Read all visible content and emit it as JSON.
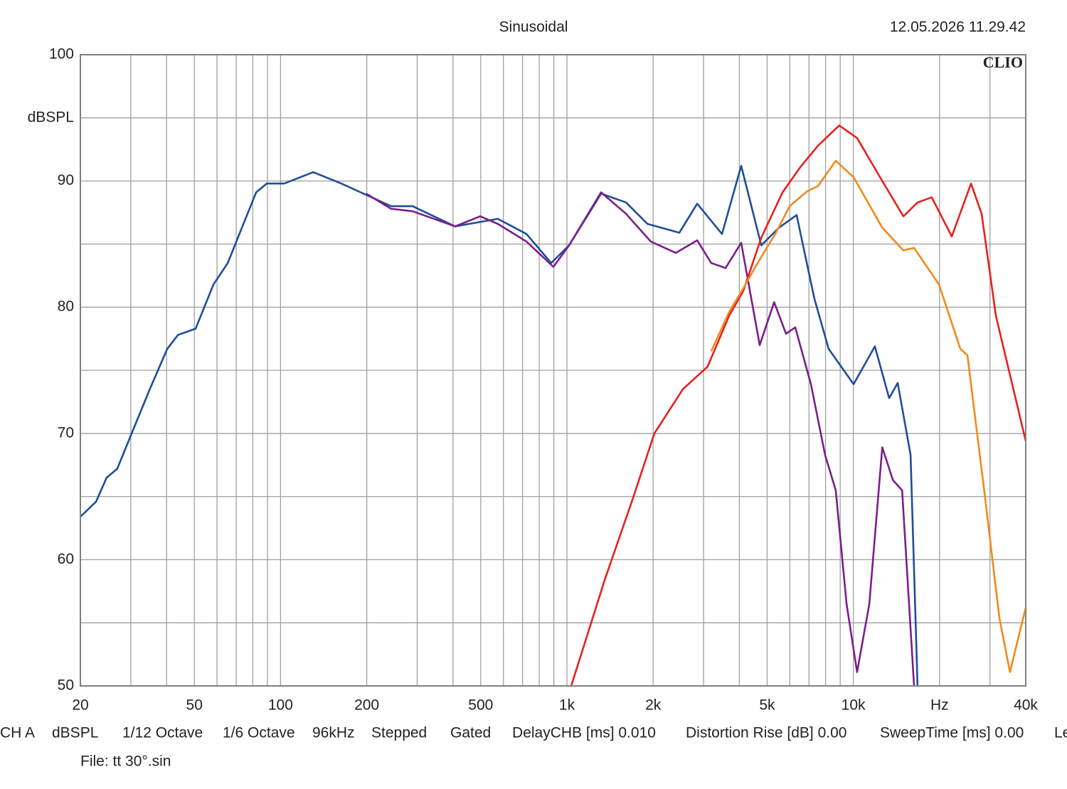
{
  "chart_data": {
    "type": "line",
    "title": "Sinusoidal",
    "timestamp": "12.05.2026 11.29.42",
    "brand": "CLIO",
    "ylabel": "dBSPL",
    "xscale": "log",
    "grid": true,
    "xlim": [
      20,
      40000
    ],
    "ylim": [
      50,
      100
    ],
    "xticks": [
      20,
      50,
      100,
      200,
      500,
      {
        "value": 1000,
        "label": "1k"
      },
      {
        "value": 2000,
        "label": "2k"
      },
      {
        "value": 5000,
        "label": "5k"
      },
      {
        "value": 10000,
        "label": "10k"
      },
      {
        "value": 20000,
        "label": "Hz"
      },
      {
        "value": 40000,
        "label": "40k"
      }
    ],
    "x_minor_ticks": [
      30,
      40,
      60,
      70,
      80,
      90,
      300,
      400,
      600,
      700,
      800,
      900,
      3000,
      4000,
      6000,
      7000,
      8000,
      9000,
      30000
    ],
    "yticks": [
      50,
      60,
      70,
      80,
      90,
      100
    ],
    "y_minor_ticks": [
      55,
      65,
      75,
      85,
      95
    ],
    "series": [
      {
        "color": "#1f4e9a",
        "x": [
          20,
          22.7,
          24.7,
          26.9,
          30.2,
          34.8,
          40.2,
          43.8,
          50.5,
          58.3,
          65.4,
          73.3,
          82.2,
          89.5,
          103,
          130,
          163,
          199,
          243,
          289,
          343,
          407,
          574,
          722,
          881,
          1017,
          1316,
          1608,
          1910,
          2469,
          2850,
          3480,
          4060,
          4770,
          5500,
          6340,
          7310,
          8200,
          10020,
          11890,
          13340,
          14290,
          15850,
          16760
        ],
        "values": [
          63.4,
          64.6,
          66.5,
          67.2,
          70,
          73.4,
          76.7,
          77.8,
          78.3,
          81.8,
          83.5,
          86.3,
          89.1,
          89.8,
          89.8,
          90.7,
          89.8,
          88.9,
          88.0,
          88.0,
          87.2,
          86.4,
          87.0,
          85.8,
          83.5,
          84.9,
          89.0,
          88.3,
          86.6,
          85.9,
          88.2,
          85.8,
          91.2,
          84.9,
          86.3,
          87.3,
          80.7,
          76.7,
          73.9,
          76.9,
          72.8,
          74,
          68.3,
          50
        ]
      },
      {
        "color": "#7a1f8a",
        "x": [
          199,
          243,
          289,
          407,
          498,
          574,
          722,
          897,
          1017,
          1316,
          1608,
          1963,
          2400,
          2850,
          3190,
          3580,
          4060,
          4710,
          5290,
          5820,
          6270,
          7110,
          7970,
          8680,
          9470,
          10310,
          11370,
          12620,
          13750,
          14800,
          16300
        ],
        "values": [
          89.0,
          87.8,
          87.6,
          86.4,
          87.2,
          86.6,
          85.2,
          83.2,
          84.9,
          89.1,
          87.4,
          85.2,
          84.3,
          85.3,
          83.5,
          83.1,
          85.1,
          77.0,
          80.4,
          77.9,
          78.4,
          73.9,
          68.3,
          65.5,
          56.5,
          51.1,
          56.5,
          68.9,
          66.3,
          65.5,
          50
        ]
      },
      {
        "color": "#e8201c",
        "x": [
          1035,
          1355,
          1702,
          2020,
          2540,
          3100,
          3680,
          4130,
          4770,
          5660,
          6530,
          7530,
          8930,
          10310,
          12620,
          14960,
          16760,
          18790,
          22070,
          25770,
          28060,
          31480,
          40000
        ],
        "values": [
          50,
          58.4,
          64.9,
          70,
          73.5,
          75.3,
          79.3,
          81.3,
          85.5,
          89.1,
          91.1,
          92.8,
          94.4,
          93.4,
          90.0,
          87.2,
          88.3,
          88.7,
          85.6,
          89.8,
          87.4,
          79.3,
          69.4
        ]
      },
      {
        "color": "#f08a1c",
        "x": [
          3190,
          3680,
          4130,
          4630,
          5340,
          5990,
          6920,
          7530,
          8680,
          10020,
          12620,
          14960,
          16300,
          19910,
          23650,
          25020,
          28860,
          32350,
          35240,
          40000
        ],
        "values": [
          76.5,
          79.6,
          81.5,
          83.5,
          85.8,
          88.0,
          89.2,
          89.6,
          91.6,
          90.3,
          86.3,
          84.5,
          84.7,
          81.8,
          76.7,
          76.2,
          64.9,
          55.4,
          51.1,
          56.2
        ]
      }
    ],
    "footer": [
      "CH A",
      "dBSPL",
      "1/12 Octave",
      "1/6 Octave",
      "96kHz",
      "Stepped",
      "Gated",
      "DelayCHB [ms] 0.010",
      "Distortion Rise [dB] 0.00",
      "SweepTime [ms] 0.00",
      "Le"
    ],
    "file": "File: tt 30°.sin"
  }
}
